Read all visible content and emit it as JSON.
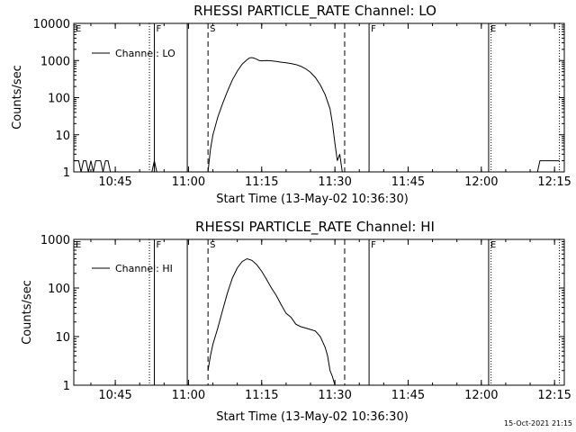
{
  "chart_data": [
    {
      "type": "line",
      "title": "RHESSI PARTICLE_RATE Channel: LO",
      "xlabel": "Start Time (13-May-02 10:36:30)",
      "ylabel": "Counts/sec",
      "yscale": "log",
      "ylim": [
        1,
        10000
      ],
      "xlim": [
        "10:36:30",
        "12:17:00"
      ],
      "x_ticks": [
        "10:45",
        "11:00",
        "11:15",
        "11:30",
        "11:45",
        "12:00",
        "12:15"
      ],
      "y_ticks": [
        "1",
        "10",
        "100",
        "1000",
        "10000"
      ],
      "legend": {
        "position": "top-left",
        "entries": [
          "Channel: LO"
        ]
      },
      "grid": false,
      "markers": [
        {
          "label": "E",
          "time": "10:36:30",
          "style": "solid"
        },
        {
          "label": "",
          "time": "10:52:00",
          "style": "dotted"
        },
        {
          "label": "F",
          "time": "10:53:00",
          "style": "solid"
        },
        {
          "label": "",
          "time": "10:59:45",
          "style": "solid"
        },
        {
          "label": "S",
          "time": "11:04:00",
          "style": "dashed"
        },
        {
          "label": "",
          "time": "11:32:00",
          "style": "dashed"
        },
        {
          "label": "F",
          "time": "11:37:00",
          "style": "solid"
        },
        {
          "label": "E",
          "time": "12:01:30",
          "style": "solid"
        },
        {
          "label": "",
          "time": "12:02:00",
          "style": "dotted"
        },
        {
          "label": "",
          "time": "12:16:00",
          "style": "dotted"
        }
      ],
      "series": [
        {
          "name": "Channel: LO",
          "segments": [
            {
              "x": [
                "10:36:30",
                "10:37:30",
                "10:38:00",
                "10:38:30",
                "10:39:00",
                "10:39:30",
                "10:40:00",
                "10:40:30",
                "10:41:00",
                "10:41:30",
                "10:42:00",
                "10:42:30",
                "10:43:00",
                "10:43:30",
                "10:44:00"
              ],
              "y": [
                2,
                2,
                1,
                2,
                2,
                1,
                2,
                1,
                2,
                2,
                2,
                1,
                2,
                2,
                1
              ]
            },
            {
              "x": [
                "10:52:30",
                "10:53:00",
                "10:53:30"
              ],
              "y": [
                1,
                2,
                1
              ]
            },
            {
              "x": [
                "11:04:00",
                "11:04:30",
                "11:05:00",
                "11:06:00",
                "11:07:00",
                "11:08:00",
                "11:09:00",
                "11:10:00",
                "11:11:00",
                "11:12:00",
                "11:12:30",
                "11:13:00",
                "11:13:30",
                "11:14:00",
                "11:14:30",
                "11:15:00",
                "11:16:00",
                "11:17:00",
                "11:18:00",
                "11:19:00",
                "11:20:00",
                "11:21:00",
                "11:22:00",
                "11:23:00",
                "11:24:00",
                "11:25:00",
                "11:26:00",
                "11:27:00",
                "11:28:00",
                "11:29:00",
                "11:29:30",
                "11:30:00",
                "11:30:30",
                "11:31:00",
                "11:31:30"
              ],
              "y": [
                1,
                4,
                10,
                30,
                70,
                150,
                300,
                520,
                800,
                1050,
                1180,
                1200,
                1150,
                1080,
                1000,
                980,
                1000,
                980,
                950,
                900,
                870,
                830,
                780,
                700,
                600,
                480,
                350,
                220,
                120,
                50,
                20,
                6,
                2,
                3,
                1
              ]
            },
            {
              "x": [
                "12:11:00",
                "12:11:30",
                "12:12:00",
                "12:13:00",
                "12:14:00",
                "12:15:00",
                "12:16:00"
              ],
              "y": [
                1,
                1,
                2,
                2,
                2,
                2,
                2
              ]
            }
          ]
        }
      ]
    },
    {
      "type": "line",
      "title": "RHESSI PARTICLE_RATE Channel: HI",
      "xlabel": "Start Time (13-May-02 10:36:30)",
      "ylabel": "Counts/sec",
      "yscale": "log",
      "ylim": [
        1,
        1000
      ],
      "xlim": [
        "10:36:30",
        "12:17:00"
      ],
      "x_ticks": [
        "10:45",
        "11:00",
        "11:15",
        "11:30",
        "11:45",
        "12:00",
        "12:15"
      ],
      "y_ticks": [
        "1",
        "10",
        "100",
        "1000"
      ],
      "legend": {
        "position": "top-left",
        "entries": [
          "Channel: HI"
        ]
      },
      "grid": false,
      "markers": [
        {
          "label": "E",
          "time": "10:36:30",
          "style": "solid"
        },
        {
          "label": "",
          "time": "10:52:00",
          "style": "dotted"
        },
        {
          "label": "F",
          "time": "10:53:00",
          "style": "solid"
        },
        {
          "label": "",
          "time": "10:59:45",
          "style": "solid"
        },
        {
          "label": "S",
          "time": "11:04:00",
          "style": "dashed"
        },
        {
          "label": "",
          "time": "11:32:00",
          "style": "dashed"
        },
        {
          "label": "F",
          "time": "11:37:00",
          "style": "solid"
        },
        {
          "label": "E",
          "time": "12:01:30",
          "style": "solid"
        },
        {
          "label": "",
          "time": "12:02:00",
          "style": "dotted"
        },
        {
          "label": "",
          "time": "12:16:00",
          "style": "dotted"
        }
      ],
      "series": [
        {
          "name": "Channel: HI",
          "segments": [
            {
              "x": [
                "11:04:00",
                "11:04:30",
                "11:05:00",
                "11:06:00",
                "11:07:00",
                "11:08:00",
                "11:09:00",
                "11:10:00",
                "11:11:00",
                "11:12:00",
                "11:13:00",
                "11:14:00",
                "11:15:00",
                "11:16:00",
                "11:17:00",
                "11:18:00",
                "11:19:00",
                "11:20:00",
                "11:21:00",
                "11:22:00",
                "11:23:00",
                "11:24:00",
                "11:25:00",
                "11:26:00",
                "11:27:00",
                "11:28:00",
                "11:28:30",
                "11:29:00",
                "11:29:30",
                "11:30:00"
              ],
              "y": [
                2,
                4,
                7,
                15,
                35,
                80,
                160,
                260,
                350,
                400,
                370,
                300,
                220,
                150,
                100,
                70,
                45,
                30,
                25,
                18,
                16,
                15,
                14,
                13,
                10,
                6,
                4,
                2,
                1.5,
                1
              ]
            }
          ]
        }
      ]
    }
  ],
  "footer": {
    "timestamp": "15-Oct-2021 21:15"
  }
}
